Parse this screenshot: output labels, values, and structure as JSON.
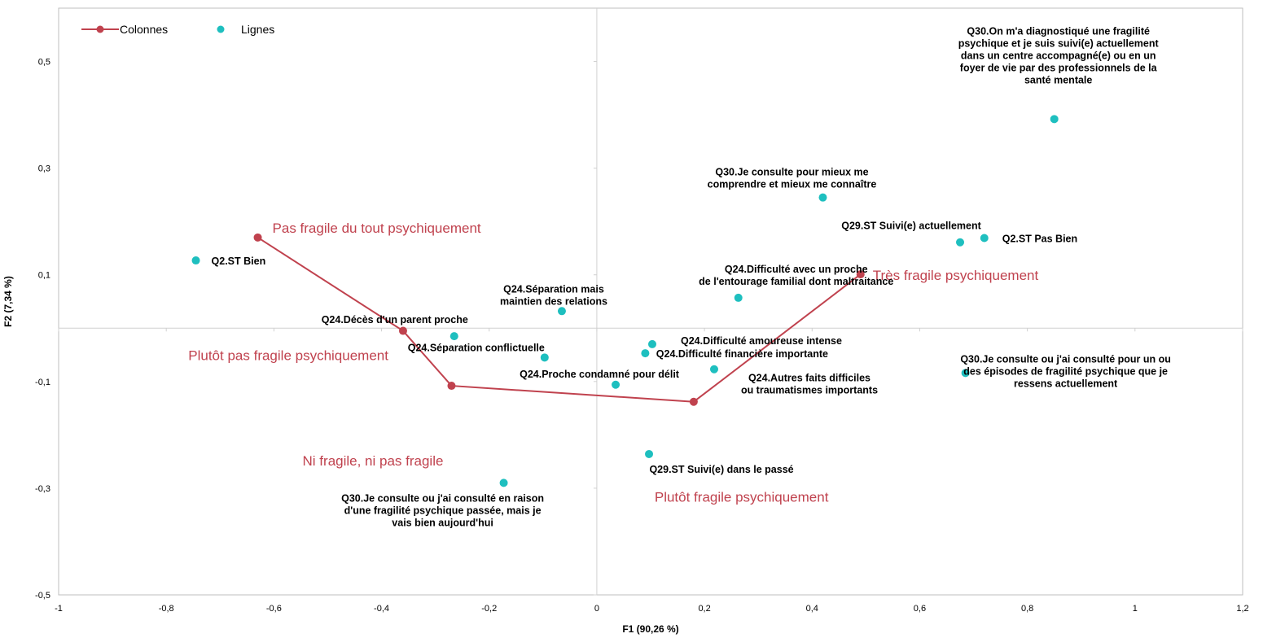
{
  "chart_data": {
    "type": "scatter",
    "xlabel": "F1 (90,26 %)",
    "ylabel": "F2 (7,34 %)",
    "xlim": [
      -1,
      1.2
    ],
    "ylim": [
      -0.5,
      0.6
    ],
    "x_ticks": [
      "-1",
      "-0,8",
      "-0,6",
      "-0,4",
      "-0,2",
      "0",
      "0,2",
      "0,4",
      "0,6",
      "0,8",
      "1",
      "1,2"
    ],
    "y_ticks": [
      "-0,5",
      "-0,3",
      "-0,1",
      "0,1",
      "0,3",
      "0,5"
    ],
    "grid": false,
    "legend": {
      "position": "top-left",
      "items": [
        {
          "name": "Colonnes",
          "marker": "line-dot"
        },
        {
          "name": "Lignes",
          "marker": "dot"
        }
      ]
    },
    "colors": {
      "colonnes": "#c0424e",
      "lignes": "#1ebfbf",
      "axis": "#d0d0d0",
      "frame": "#bfbfbf"
    },
    "series": [
      {
        "name": "Colonnes",
        "connected": true,
        "points": [
          {
            "label": "Pas fragile du tout psychiquement",
            "x": -0.63,
            "y": 0.17
          },
          {
            "label": "Plutôt pas fragile psychiquement",
            "x": -0.36,
            "y": -0.005
          },
          {
            "label": "Ni fragile, ni pas fragile",
            "x": -0.27,
            "y": -0.108
          },
          {
            "label": "Plutôt fragile psychiquement",
            "x": 0.18,
            "y": -0.138
          },
          {
            "label": "Très fragile psychiquement",
            "x": 0.49,
            "y": 0.101
          }
        ]
      },
      {
        "name": "Lignes",
        "connected": false,
        "points": [
          {
            "lines": [
              "Q2.ST Bien"
            ],
            "x": -0.745,
            "y": 0.127
          },
          {
            "lines": [
              "Q24.Séparation mais",
              "maintien des relations"
            ],
            "x": -0.065,
            "y": 0.032
          },
          {
            "lines": [
              "Q24.Décès d'un parent proche"
            ],
            "x": -0.265,
            "y": -0.015
          },
          {
            "lines": [
              "Q24.Séparation conflictuelle"
            ],
            "x": -0.097,
            "y": -0.055
          },
          {
            "lines": [
              "Q24.Difficulté amoureuse intense"
            ],
            "x": 0.103,
            "y": -0.03
          },
          {
            "lines": [
              "Q24.Difficulté financière importante"
            ],
            "x": 0.09,
            "y": -0.047
          },
          {
            "lines": [
              "Q24.Proche condamné pour délit"
            ],
            "x": 0.035,
            "y": -0.106
          },
          {
            "lines": [
              "Q24.Autres faits difficiles",
              "ou traumatismes importants"
            ],
            "x": 0.218,
            "y": -0.077
          },
          {
            "lines": [
              "Q24.Difficulté avec un proche",
              "de l'entourage familial dont maltraitance"
            ],
            "x": 0.263,
            "y": 0.057
          },
          {
            "lines": [
              "Q30.Je consulte pour mieux me",
              "comprendre et mieux me connaître"
            ],
            "x": 0.42,
            "y": 0.245
          },
          {
            "lines": [
              "Q29.ST Suivi(e) actuellement"
            ],
            "x": 0.675,
            "y": 0.161
          },
          {
            "lines": [
              "Q2.ST Pas Bien"
            ],
            "x": 0.72,
            "y": 0.169
          },
          {
            "lines": [
              "Q30.On m'a diagnostiqué une fragilité",
              "psychique et je suis suivi(e) actuellement",
              "dans un centre accompagné(e) ou en un",
              "foyer de vie par des professionnels de la",
              "santé mentale"
            ],
            "x": 0.85,
            "y": 0.392
          },
          {
            "lines": [
              "Q30.Je consulte ou j'ai consulté pour un ou",
              "des épisodes de fragilité psychique que je",
              "ressens actuellement"
            ],
            "x": 0.685,
            "y": -0.084
          },
          {
            "lines": [
              "Q29.ST Suivi(e) dans le passé"
            ],
            "x": 0.097,
            "y": -0.236
          },
          {
            "lines": [
              "Q30.Je consulte ou j'ai consulté en raison",
              "d'une fragilité psychique passée, mais je",
              "vais bien aujourd'hui"
            ],
            "x": -0.173,
            "y": -0.29
          }
        ]
      }
    ]
  }
}
